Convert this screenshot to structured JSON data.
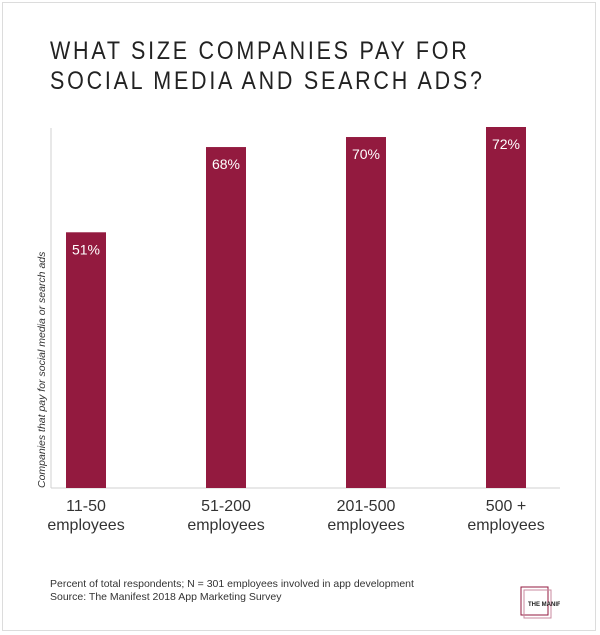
{
  "title_lines": [
    "WHAT SIZE COMPANIES PAY FOR",
    "SOCIAL MEDIA AND SEARCH ADS?"
  ],
  "footnote": "Percent of total respondents; N = 301 employees involved in app development",
  "source": "Source: The Manifest 2018 App Marketing Survey",
  "logo_text": "THE MANIFEST",
  "chart_data": {
    "type": "bar",
    "title": "WHAT SIZE COMPANIES PAY FOR SOCIAL MEDIA AND SEARCH ADS?",
    "ylabel": "Companies that pay for social media or search ads",
    "xlabel": "",
    "categories": [
      [
        "11-50",
        "employees"
      ],
      [
        "51-200",
        "employees"
      ],
      [
        "201-500",
        "employees"
      ],
      [
        "500 +",
        "employees"
      ]
    ],
    "values": [
      51,
      68,
      70,
      72
    ],
    "data_labels": [
      "51%",
      "68%",
      "70%",
      "72%"
    ],
    "ylim": [
      0,
      72
    ],
    "grid": false,
    "bar_color": "#931a3f"
  }
}
